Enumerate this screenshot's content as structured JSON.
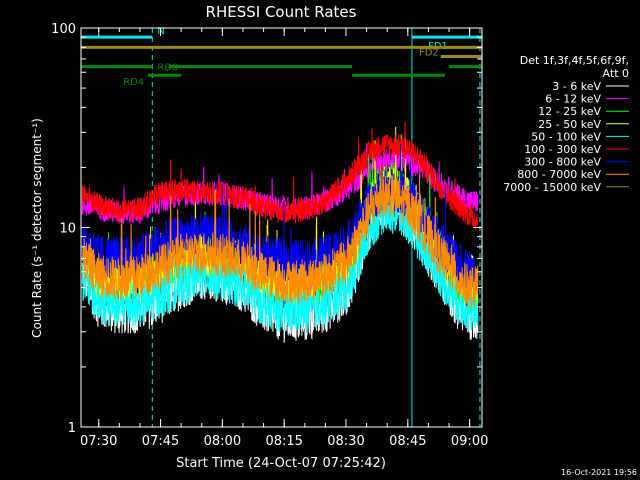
{
  "colors": {
    "background": "#000000",
    "foreground": "#ffffff",
    "cyan": "#00e5ee",
    "green_flag": "#008800",
    "olive_flag": "#9b8a14"
  },
  "chart_data": {
    "type": "line",
    "title": "RHESSI Count Rates",
    "xlabel": "Start Time (24-Oct-07 07:25:42)",
    "ylabel": "Count Rate (s⁻¹ detector segment⁻¹)",
    "yscale": "log",
    "ylim": [
      1,
      100
    ],
    "xlim": [
      "07:25:42",
      "09:03:00"
    ],
    "x_ticks": [
      "07:30",
      "07:45",
      "08:00",
      "08:15",
      "08:30",
      "08:45",
      "09:00"
    ],
    "y_ticks": [
      "1",
      "10",
      "100"
    ],
    "grid": false,
    "legend_title_1": "Det 1f,3f,4f,5f,6f,9f,",
    "legend_title_2": "Att 0",
    "legend_position": "right",
    "series": [
      {
        "name": "3 - 6 keV",
        "color": "#ffffff",
        "x": [
          "07:26",
          "07:30",
          "07:35",
          "07:40",
          "07:45",
          "07:50",
          "07:55",
          "08:00",
          "08:05",
          "08:10",
          "08:15",
          "08:20",
          "08:25",
          "08:30",
          "08:33",
          "08:36",
          "08:39",
          "08:42",
          "08:45",
          "08:48",
          "08:51",
          "08:54",
          "08:57",
          "09:00",
          "09:02"
        ],
        "values": [
          6.0,
          4.0,
          3.7,
          3.8,
          4.2,
          5.0,
          5.6,
          5.4,
          4.8,
          3.8,
          3.4,
          3.4,
          3.8,
          4.6,
          6.5,
          10.5,
          13.0,
          12.8,
          11.0,
          8.6,
          6.6,
          5.2,
          4.0,
          3.5,
          3.5
        ]
      },
      {
        "name": "6 - 12 keV",
        "color": "#ff00ff",
        "x": [
          "07:26",
          "07:30",
          "07:35",
          "07:40",
          "07:45",
          "07:50",
          "07:55",
          "08:00",
          "08:05",
          "08:10",
          "08:15",
          "08:20",
          "08:25",
          "08:30",
          "08:33",
          "08:36",
          "08:39",
          "08:42",
          "08:45",
          "08:48",
          "08:51",
          "08:54",
          "08:57",
          "09:00",
          "09:02"
        ],
        "values": [
          13.0,
          12.5,
          11.8,
          12.0,
          13.5,
          14.5,
          14.8,
          14.8,
          14.0,
          13.0,
          12.5,
          12.5,
          13.5,
          15.5,
          17.5,
          20.0,
          21.5,
          22.0,
          21.5,
          20.0,
          17.5,
          16.0,
          14.5,
          13.5,
          13.5
        ]
      },
      {
        "name": "12 - 25 keV",
        "color": "#00ff00",
        "x": [
          "07:26",
          "07:30",
          "07:35",
          "07:40",
          "07:45",
          "07:50",
          "07:55",
          "08:00",
          "08:05",
          "08:10",
          "08:15",
          "08:20",
          "08:25",
          "08:30",
          "08:33",
          "08:36",
          "08:39",
          "08:42",
          "08:45",
          "08:48",
          "08:51",
          "08:54",
          "08:57",
          "09:00",
          "09:02"
        ],
        "values": [
          6.8,
          5.5,
          5.2,
          5.4,
          6.0,
          6.8,
          7.2,
          7.0,
          6.4,
          5.4,
          5.0,
          5.0,
          5.4,
          6.4,
          8.6,
          13.5,
          17.0,
          16.5,
          14.5,
          11.5,
          9.0,
          7.0,
          5.6,
          4.8,
          4.8
        ]
      },
      {
        "name": "25 - 50 keV",
        "color": "#ffff00",
        "x": [
          "07:26",
          "07:30",
          "07:35",
          "07:40",
          "07:45",
          "07:50",
          "07:55",
          "08:00",
          "08:05",
          "08:10",
          "08:15",
          "08:20",
          "08:25",
          "08:30",
          "08:33",
          "08:36",
          "08:39",
          "08:42",
          "08:45",
          "08:48",
          "08:51",
          "08:54",
          "08:57",
          "09:00",
          "09:02"
        ],
        "values": [
          6.8,
          5.6,
          5.3,
          5.5,
          6.1,
          6.9,
          7.3,
          7.1,
          6.5,
          5.5,
          5.1,
          5.1,
          5.5,
          6.5,
          8.7,
          13.0,
          16.0,
          15.5,
          14.0,
          11.2,
          8.8,
          6.9,
          5.6,
          4.9,
          4.9
        ]
      },
      {
        "name": "50 - 100 keV",
        "color": "#00ffff",
        "x": [
          "07:26",
          "07:30",
          "07:35",
          "07:40",
          "07:45",
          "07:50",
          "07:55",
          "08:00",
          "08:05",
          "08:10",
          "08:15",
          "08:20",
          "08:25",
          "08:30",
          "08:33",
          "08:36",
          "08:39",
          "08:42",
          "08:45",
          "08:48",
          "08:51",
          "08:54",
          "08:57",
          "09:00",
          "09:02"
        ],
        "values": [
          5.6,
          4.2,
          4.0,
          4.1,
          4.5,
          5.2,
          5.7,
          5.5,
          5.0,
          4.1,
          3.8,
          3.8,
          4.1,
          4.9,
          6.8,
          10.0,
          12.0,
          11.8,
          10.6,
          8.6,
          6.8,
          5.3,
          4.3,
          3.8,
          3.8
        ]
      },
      {
        "name": "100 - 300 keV",
        "color": "#ff0000",
        "x": [
          "07:26",
          "07:30",
          "07:35",
          "07:40",
          "07:45",
          "07:50",
          "07:55",
          "08:00",
          "08:05",
          "08:10",
          "08:15",
          "08:20",
          "08:25",
          "08:30",
          "08:33",
          "08:36",
          "08:39",
          "08:42",
          "08:45",
          "08:48",
          "08:51",
          "08:54",
          "08:57",
          "09:00",
          "09:02"
        ],
        "values": [
          15.0,
          13.0,
          12.0,
          12.5,
          15.0,
          15.5,
          15.0,
          14.8,
          14.0,
          12.5,
          12.0,
          12.2,
          13.5,
          17.0,
          20.5,
          24.0,
          26.0,
          26.0,
          25.0,
          22.0,
          18.0,
          15.0,
          13.0,
          11.5,
          10.8
        ]
      },
      {
        "name": "300 - 800 keV",
        "color": "#0000ff",
        "x": [
          "07:26",
          "07:30",
          "07:35",
          "07:40",
          "07:45",
          "07:50",
          "07:55",
          "08:00",
          "08:05",
          "08:10",
          "08:15",
          "08:20",
          "08:25",
          "08:30",
          "08:33",
          "08:36",
          "08:39",
          "08:42",
          "08:45",
          "08:48",
          "08:51",
          "08:54",
          "08:57",
          "09:00",
          "09:02"
        ],
        "values": [
          8.5,
          7.2,
          7.0,
          7.2,
          8.2,
          9.0,
          9.2,
          8.8,
          8.2,
          7.2,
          6.8,
          6.8,
          7.2,
          8.2,
          10.5,
          13.5,
          15.5,
          15.5,
          14.5,
          12.0,
          9.6,
          7.8,
          6.6,
          6.0,
          6.0
        ]
      },
      {
        "name": "800 - 7000 keV",
        "color": "#ff8c00",
        "x": [
          "07:26",
          "07:30",
          "07:35",
          "07:40",
          "07:45",
          "07:50",
          "07:55",
          "08:00",
          "08:05",
          "08:10",
          "08:15",
          "08:20",
          "08:25",
          "08:30",
          "08:33",
          "08:36",
          "08:39",
          "08:42",
          "08:45",
          "08:48",
          "08:51",
          "08:54",
          "08:57",
          "09:00",
          "09:02"
        ],
        "values": [
          7.0,
          5.8,
          5.5,
          5.7,
          6.4,
          7.2,
          7.5,
          7.3,
          6.7,
          5.8,
          5.4,
          5.4,
          5.8,
          6.8,
          9.0,
          12.5,
          14.5,
          14.2,
          13.0,
          10.5,
          8.4,
          6.8,
          5.6,
          5.0,
          5.0
        ]
      },
      {
        "name": "7000 - 15000 keV",
        "color": "#9b8a14",
        "x": [],
        "values": []
      }
    ],
    "markers": [
      {
        "label": "N",
        "color": "#00e5ee",
        "x_start": "07:25:42",
        "x_end": "07:43:00",
        "level": 90
      },
      {
        "label": "FD1",
        "color": "#00e5ee",
        "x_start": "08:46:00",
        "x_end": "09:03:00",
        "level": 90
      },
      {
        "label": "",
        "color": "#9b8a14",
        "x_start": "07:25:42",
        "x_end": "09:03:00",
        "level": 80
      },
      {
        "label": "FD2",
        "color": "#9b8a14",
        "x_start": "08:53:00",
        "x_end": "09:03:00",
        "level": 72
      },
      {
        "label": "RD0",
        "color": "#008800",
        "x_start": "07:25:42",
        "x_end": "07:43:00",
        "level": 64
      },
      {
        "label": "",
        "color": "#008800",
        "x_start": "07:47:00",
        "x_end": "08:31:30",
        "level": 64
      },
      {
        "label": "",
        "color": "#008800",
        "x_start": "08:55:00",
        "x_end": "09:03:00",
        "level": 64
      },
      {
        "label": "RD4",
        "color": "#008800",
        "x_start": "07:42:00",
        "x_end": "07:50:00",
        "level": 58
      },
      {
        "label": "",
        "color": "#008800",
        "x_start": "08:31:30",
        "x_end": "08:54:00",
        "level": 58
      }
    ],
    "vertical_lines": [
      {
        "x": "07:25:42",
        "style": "solid",
        "color": "#00e5ee"
      },
      {
        "x": "07:43:00",
        "style": "dashed",
        "color": "#00e5ee"
      },
      {
        "x": "08:46:00",
        "style": "solid",
        "color": "#00e5ee"
      },
      {
        "x": "09:02:30",
        "style": "dashed",
        "color": "#00e5ee"
      }
    ],
    "timestamp": "16-Oct-2021 19:56"
  }
}
